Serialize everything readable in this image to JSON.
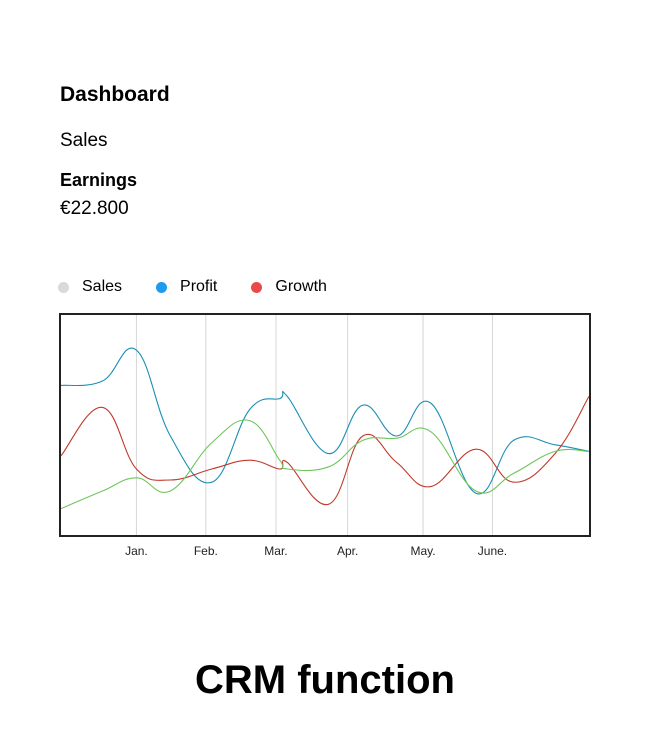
{
  "header": {
    "title": "Dashboard"
  },
  "section": {
    "label": "Sales"
  },
  "metric": {
    "label": "Earnings",
    "value": "€22.800"
  },
  "footer": {
    "title": "CRM function"
  },
  "colors": {
    "sales": "#d9d9d9",
    "profit": "#1e9bf0",
    "growth": "#e84a4a"
  },
  "chart_data": {
    "type": "line",
    "smooth": true,
    "grid": "vertical",
    "legend_position": "top-left",
    "categories": [
      "Jan.",
      "Feb.",
      "Mar.",
      "Apr.",
      "May.",
      "June."
    ],
    "x": [
      0,
      0.55,
      1,
      1.45,
      2,
      2.5,
      2.9,
      3,
      3.55,
      4,
      4.45,
      4.9,
      5.5,
      6,
      6.55,
      7
    ],
    "ylim": [
      0,
      100
    ],
    "series": [
      {
        "name": "Profit",
        "color": "#1e9bf0",
        "curve_color": "#1a8fb4",
        "values": [
          68,
          70,
          84,
          45,
          24,
          57,
          62,
          63,
          37,
          59,
          45,
          60,
          19,
          43,
          41,
          38
        ]
      },
      {
        "name": "Growth",
        "color": "#e84a4a",
        "curve_color": "#c0392b",
        "values": [
          36,
          58,
          30,
          25,
          30,
          34,
          30,
          33,
          14,
          45,
          33,
          22,
          39,
          24,
          37,
          63
        ]
      },
      {
        "name": "Sales",
        "color": "#d9d9d9",
        "curve_color": "#6fc55d",
        "values": [
          12,
          20,
          26,
          20,
          42,
          52,
          34,
          30,
          31,
          43,
          44,
          47,
          20,
          28,
          38,
          38
        ]
      }
    ]
  }
}
